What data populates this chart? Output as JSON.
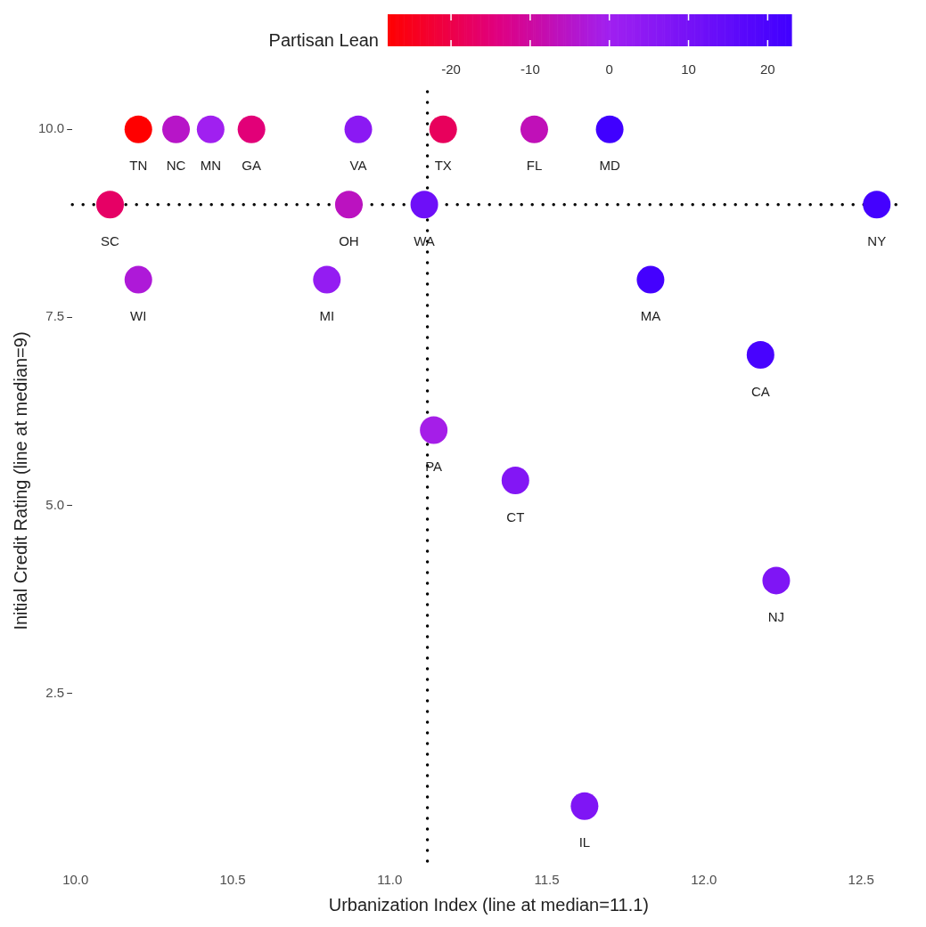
{
  "chart_data": {
    "type": "scatter",
    "xlabel": "Urbanization Index (line at median=11.1)",
    "ylabel": "Initial Credit Rating (line at median=9)",
    "clabel": "Partisan Lean",
    "x": [
      10.2,
      10.32,
      10.43,
      10.56,
      10.9,
      11.17,
      11.46,
      11.7,
      10.11,
      10.87,
      11.11,
      12.55,
      10.2,
      10.8,
      11.83,
      12.18,
      11.14,
      11.4,
      12.23,
      11.62
    ],
    "values": [
      10,
      10,
      10,
      10,
      10,
      10,
      10,
      10,
      9,
      9,
      9,
      9,
      8,
      8,
      8,
      7,
      6,
      5.33,
      4,
      1
    ],
    "cvalues": [
      -28,
      -5,
      0,
      -15,
      5,
      -18,
      -7,
      23,
      -17,
      -6,
      12,
      22,
      -3,
      3,
      22,
      21,
      -1,
      7,
      8,
      8
    ],
    "clim": [
      -28,
      23
    ],
    "cticks": [
      -20,
      -10,
      0,
      10,
      20
    ],
    "xlim": [
      9.99,
      12.64
    ],
    "ylim": [
      0.15,
      10.5
    ],
    "xticks": [
      {
        "value": 10,
        "label": "10.0"
      },
      {
        "value": 10.5,
        "label": "10.5"
      },
      {
        "value": 11,
        "label": "11.0"
      },
      {
        "value": 11.5,
        "label": "11.5"
      },
      {
        "value": 12,
        "label": "12.0"
      },
      {
        "value": 12.5,
        "label": "12.5"
      }
    ],
    "yticks": [
      {
        "value": 2.5,
        "label": "2.5"
      },
      {
        "value": 5,
        "label": "5.0"
      },
      {
        "value": 7.5,
        "label": "7.5"
      },
      {
        "value": 10,
        "label": "10.0"
      }
    ],
    "ref_lines": [
      {
        "axis": "y",
        "value": 9,
        "line_style": "dotted"
      },
      {
        "axis": "x",
        "value": 11.12,
        "line_style": "dotted"
      }
    ],
    "annotations": [
      {
        "text": "TN",
        "x": 10.2,
        "y": 10
      },
      {
        "text": "NC",
        "x": 10.32,
        "y": 10
      },
      {
        "text": "MN",
        "x": 10.43,
        "y": 10
      },
      {
        "text": "GA",
        "x": 10.56,
        "y": 10
      },
      {
        "text": "VA",
        "x": 10.9,
        "y": 10
      },
      {
        "text": "TX",
        "x": 11.17,
        "y": 10
      },
      {
        "text": "FL",
        "x": 11.46,
        "y": 10
      },
      {
        "text": "MD",
        "x": 11.7,
        "y": 10
      },
      {
        "text": "SC",
        "x": 10.11,
        "y": 9
      },
      {
        "text": "OH",
        "x": 10.87,
        "y": 9
      },
      {
        "text": "WA",
        "x": 11.11,
        "y": 9
      },
      {
        "text": "NY",
        "x": 12.55,
        "y": 9
      },
      {
        "text": "WI",
        "x": 10.2,
        "y": 8
      },
      {
        "text": "MI",
        "x": 10.8,
        "y": 8
      },
      {
        "text": "MA",
        "x": 11.83,
        "y": 8
      },
      {
        "text": "CA",
        "x": 12.18,
        "y": 7
      },
      {
        "text": "PA",
        "x": 11.14,
        "y": 6
      },
      {
        "text": "CT",
        "x": 11.4,
        "y": 5.33
      },
      {
        "text": "NJ",
        "x": 12.23,
        "y": 4
      },
      {
        "text": "IL",
        "x": 11.62,
        "y": 1
      }
    ],
    "grid": false,
    "legend": false,
    "marker": "circle"
  }
}
